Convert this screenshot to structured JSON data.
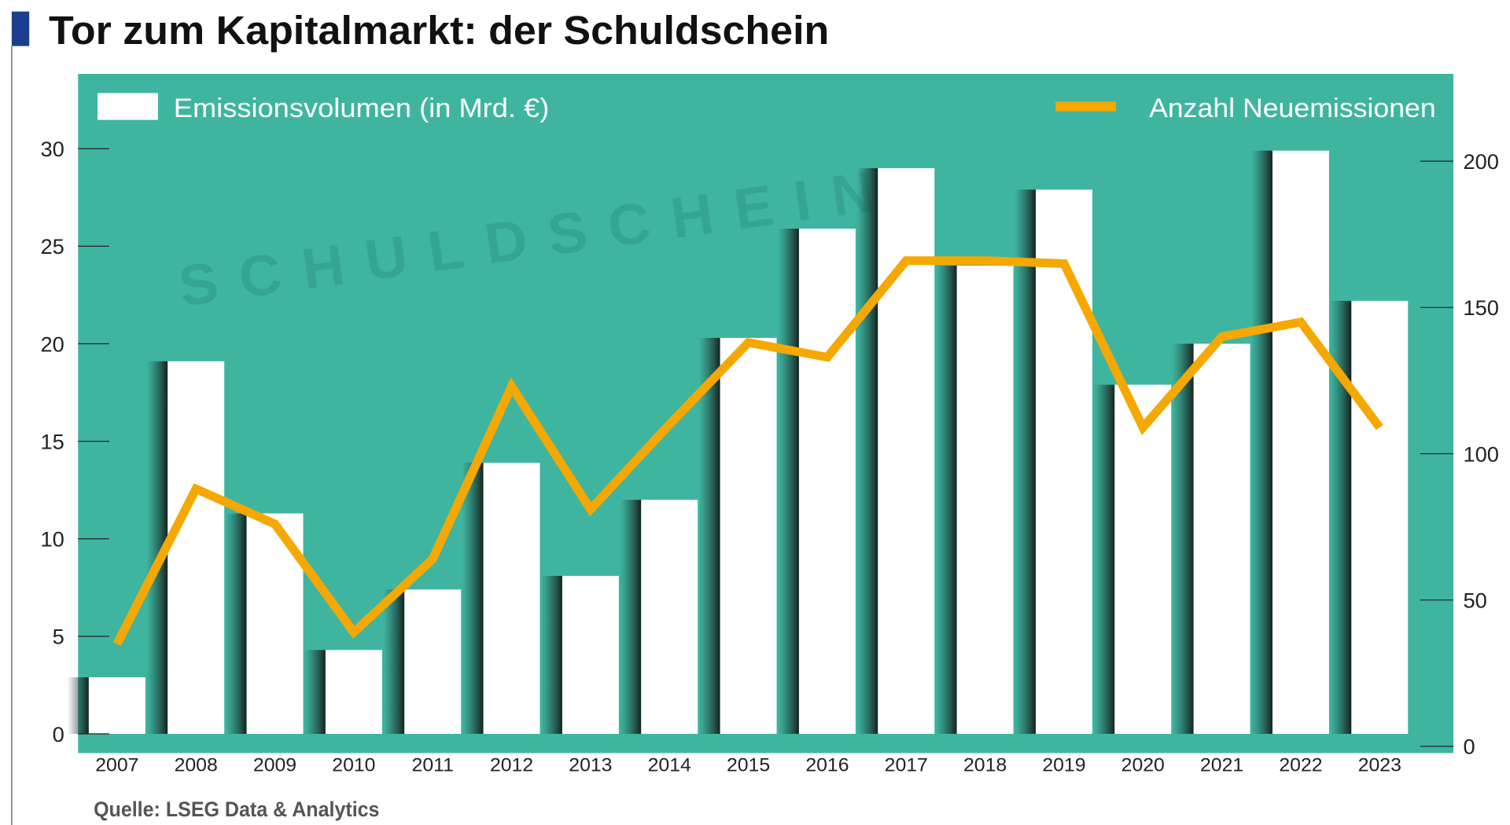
{
  "title": "Tor zum Kapitalmarkt: der Schuldschein",
  "source": "Quelle: LSEG Data & Analytics",
  "colors": {
    "background": "#3fb5a0",
    "bars": "#ffffff",
    "line": "#f5a800",
    "title_marker": "#1a3d8f"
  },
  "chart_data": {
    "type": "bar+line",
    "categories": [
      "2007",
      "2008",
      "2009",
      "2010",
      "2011",
      "2012",
      "2013",
      "2014",
      "2015",
      "2016",
      "2017",
      "2018",
      "2019",
      "2020",
      "2021",
      "2022",
      "2023"
    ],
    "series": [
      {
        "name": "Emissionsvolumen (in Mrd. €)",
        "type": "bar",
        "axis": "left",
        "values": [
          2.9,
          19.1,
          11.3,
          4.3,
          7.4,
          13.9,
          8.1,
          12.0,
          20.3,
          25.9,
          29.0,
          24.0,
          27.9,
          17.9,
          20.0,
          29.9,
          22.2
        ]
      },
      {
        "name": "Anzahl Neuemissionen",
        "type": "line",
        "axis": "right",
        "values": [
          35,
          88,
          76,
          39,
          64,
          123,
          81,
          110,
          138,
          133,
          166,
          166,
          165,
          109,
          140,
          145,
          109
        ]
      }
    ],
    "y_left": {
      "range": [
        0,
        30
      ],
      "ticks": [
        "0",
        "5",
        "10",
        "15",
        "20",
        "25",
        "30"
      ]
    },
    "y_right": {
      "range": [
        0,
        200
      ],
      "ticks": [
        "0",
        "50",
        "100",
        "150",
        "200"
      ]
    },
    "legend_placement": "top",
    "grid": false
  }
}
